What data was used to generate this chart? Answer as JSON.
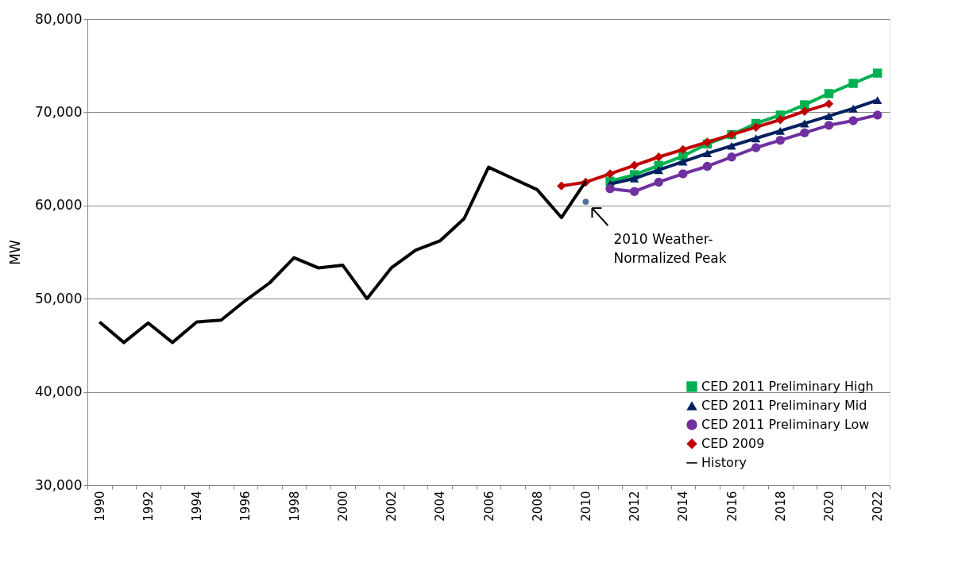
{
  "chart_data": {
    "type": "line",
    "ylabel": "MW",
    "categories": [
      "1990",
      null,
      "1992",
      null,
      "1994",
      null,
      "1996",
      null,
      "1998",
      null,
      "2000",
      null,
      "2002",
      null,
      "2004",
      null,
      "2006",
      null,
      "2008",
      null,
      "2010",
      null,
      "2012",
      null,
      "2014",
      null,
      "2016",
      null,
      "2018",
      null,
      "2020",
      null,
      "2022"
    ],
    "ylim": [
      30000,
      80000
    ],
    "yticks": [
      {
        "value": 30000,
        "label": "30,000"
      },
      {
        "value": 40000,
        "label": "40,000"
      },
      {
        "value": 50000,
        "label": "50,000"
      },
      {
        "value": 60000,
        "label": "60,000"
      },
      {
        "value": 70000,
        "label": "70,000"
      },
      {
        "value": 80000,
        "label": "80,000"
      }
    ],
    "grid": "y",
    "legend": "bottom right",
    "line_style": "solid",
    "series": [
      {
        "name": "CED 2011 Preliminary High",
        "color": "#00b050",
        "marker": "square",
        "values": [
          null,
          null,
          null,
          null,
          null,
          null,
          null,
          null,
          null,
          null,
          null,
          null,
          null,
          null,
          null,
          null,
          null,
          null,
          null,
          null,
          null,
          62600,
          63300,
          64300,
          65300,
          66600,
          67600,
          68800,
          69700,
          70800,
          72000,
          73100,
          74200
        ]
      },
      {
        "name": "CED 2011 Preliminary Mid",
        "color": "#002060",
        "marker": "triangle",
        "values": [
          null,
          null,
          null,
          null,
          null,
          null,
          null,
          null,
          null,
          null,
          null,
          null,
          null,
          null,
          null,
          null,
          null,
          null,
          null,
          null,
          null,
          62300,
          62900,
          63800,
          64700,
          65600,
          66400,
          67200,
          68000,
          68800,
          69600,
          70400,
          71300
        ]
      },
      {
        "name": "CED 2011 Preliminary Low",
        "color": "#7030a0",
        "marker": "circle",
        "values": [
          null,
          null,
          null,
          null,
          null,
          null,
          null,
          null,
          null,
          null,
          null,
          null,
          null,
          null,
          null,
          null,
          null,
          null,
          null,
          null,
          null,
          61800,
          61500,
          62500,
          63400,
          64200,
          65200,
          66200,
          67000,
          67800,
          68600,
          69100,
          69700
        ]
      },
      {
        "name": "CED 2009",
        "color": "#c00000",
        "marker": "diamond",
        "values": [
          null,
          null,
          null,
          null,
          null,
          null,
          null,
          null,
          null,
          null,
          null,
          null,
          null,
          null,
          null,
          null,
          null,
          null,
          null,
          62100,
          62500,
          63400,
          64300,
          65200,
          66000,
          66800,
          67600,
          68400,
          69200,
          70100,
          70900,
          null,
          null
        ]
      },
      {
        "name": "History",
        "color": "#000000",
        "marker": "none",
        "values": [
          47500,
          45300,
          47400,
          45300,
          47500,
          47700,
          49800,
          51700,
          54400,
          53300,
          53600,
          50000,
          53300,
          55200,
          56200,
          58600,
          64100,
          62900,
          61700,
          58700,
          62600,
          null,
          null,
          null,
          null,
          null,
          null,
          null,
          null,
          null,
          null,
          null,
          null
        ]
      },
      {
        "type": "scatter",
        "color": "#4f6fa0",
        "marker": "circle",
        "values": [
          null,
          null,
          null,
          null,
          null,
          null,
          null,
          null,
          null,
          null,
          null,
          null,
          null,
          null,
          null,
          null,
          null,
          null,
          null,
          null,
          60400,
          null,
          null,
          null,
          null,
          null,
          null,
          null,
          null,
          null,
          null,
          null,
          null
        ]
      }
    ],
    "annotations": [
      {
        "text": "2010 Weather-\nNormalized Peak",
        "x": "2010",
        "y": 60400
      }
    ]
  }
}
